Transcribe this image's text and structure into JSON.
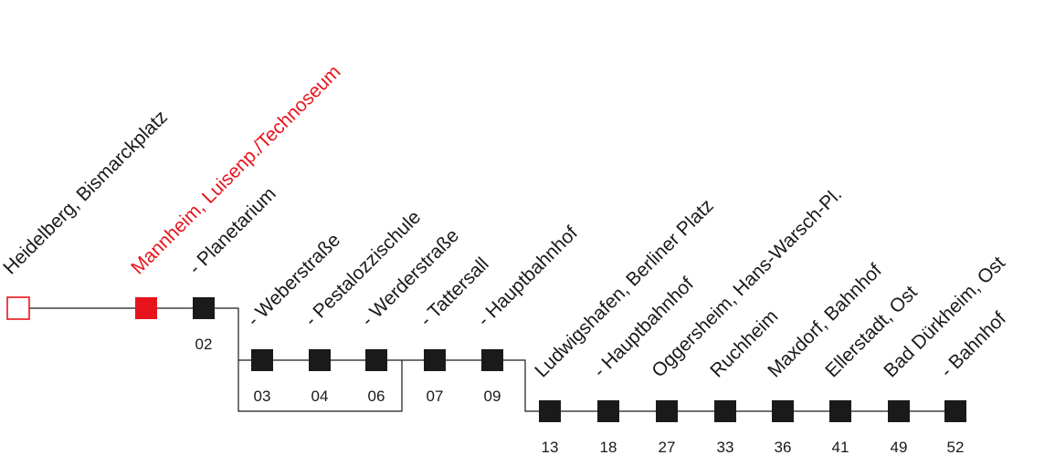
{
  "colors": {
    "highlight": "#e8141c",
    "stop": "#1a1a1a",
    "line": "#1a1a1a",
    "background": "#ffffff"
  },
  "stops": [
    {
      "label": "Heidelberg, Bismarckplatz",
      "time": "",
      "state": "origin"
    },
    {
      "label": "Mannheim, Luisenp./Technoseum",
      "time": "",
      "state": "current"
    },
    {
      "label": "- Planetarium",
      "time": "02",
      "state": "normal"
    },
    {
      "label": "- Weberstraße",
      "time": "03",
      "state": "normal"
    },
    {
      "label": "- Pestalozzischule",
      "time": "04",
      "state": "normal"
    },
    {
      "label": "- Werderstraße",
      "time": "06",
      "state": "normal"
    },
    {
      "label": "- Tattersall",
      "time": "07",
      "state": "normal"
    },
    {
      "label": "- Hauptbahnhof",
      "time": "09",
      "state": "normal"
    },
    {
      "label": "Ludwigshafen, Berliner Platz",
      "time": "13",
      "state": "normal"
    },
    {
      "label": "- Hauptbahnhof",
      "time": "18",
      "state": "normal"
    },
    {
      "label": "Oggersheim, Hans-Warsch-Pl.",
      "time": "27",
      "state": "normal"
    },
    {
      "label": "Ruchheim",
      "time": "33",
      "state": "normal"
    },
    {
      "label": "Maxdorf, Bahnhof",
      "time": "36",
      "state": "normal"
    },
    {
      "label": "Ellerstadt, Ost",
      "time": "41",
      "state": "normal"
    },
    {
      "label": "Bad Dürkheim, Ost",
      "time": "49",
      "state": "normal"
    },
    {
      "label": "- Bahnhof",
      "time": "52",
      "state": "normal"
    }
  ]
}
